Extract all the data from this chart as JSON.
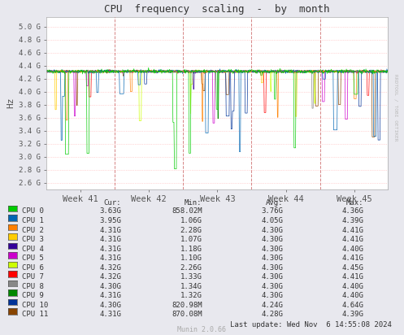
{
  "title": "CPU  frequency  scaling  -  by  month",
  "ylabel": "Hz",
  "xlabel_ticks": [
    "Week 41",
    "Week 42",
    "Week 43",
    "Week 44",
    "Week 45"
  ],
  "ytick_labels": [
    "2.6 G",
    "2.8 G",
    "3.0 G",
    "3.2 G",
    "3.4 G",
    "3.6 G",
    "3.8 G",
    "4.0 G",
    "4.2 G",
    "4.4 G",
    "4.6 G",
    "4.8 G",
    "5.0 G"
  ],
  "ytick_values": [
    2.6,
    2.8,
    3.0,
    3.2,
    3.4,
    3.6,
    3.8,
    4.0,
    4.2,
    4.4,
    4.6,
    4.8,
    5.0
  ],
  "ylim": [
    2.5,
    5.15
  ],
  "bg_color": "#e8e8ee",
  "plot_bg_color": "#ffffff",
  "grid_color": "#ffaaaa",
  "title_color": "#333333",
  "watermark": "RRDTOOL / TOBI OETIKER",
  "munin_version": "Munin 2.0.66",
  "last_update": "Last update: Wed Nov  6 14:55:08 2024",
  "cpus": [
    {
      "name": "CPU 0",
      "color": "#00cc00",
      "cur": "3.63G",
      "min": "858.02M",
      "avg": "3.76G",
      "max": "4.36G"
    },
    {
      "name": "CPU 1",
      "color": "#0066b3",
      "cur": "3.95G",
      "min": "1.06G",
      "avg": "4.05G",
      "max": "4.39G"
    },
    {
      "name": "CPU 2",
      "color": "#ff8000",
      "cur": "4.31G",
      "min": "2.28G",
      "avg": "4.30G",
      "max": "4.41G"
    },
    {
      "name": "CPU 3",
      "color": "#ffcc00",
      "cur": "4.31G",
      "min": "1.07G",
      "avg": "4.30G",
      "max": "4.41G"
    },
    {
      "name": "CPU 4",
      "color": "#330099",
      "cur": "4.31G",
      "min": "1.18G",
      "avg": "4.30G",
      "max": "4.40G"
    },
    {
      "name": "CPU 5",
      "color": "#cc00cc",
      "cur": "4.31G",
      "min": "1.10G",
      "avg": "4.30G",
      "max": "4.41G"
    },
    {
      "name": "CPU 6",
      "color": "#ccff00",
      "cur": "4.32G",
      "min": "2.26G",
      "avg": "4.30G",
      "max": "4.45G"
    },
    {
      "name": "CPU 7",
      "color": "#ff0000",
      "cur": "4.32G",
      "min": "1.33G",
      "avg": "4.30G",
      "max": "4.41G"
    },
    {
      "name": "CPU 8",
      "color": "#888888",
      "cur": "4.30G",
      "min": "1.34G",
      "avg": "4.30G",
      "max": "4.40G"
    },
    {
      "name": "CPU 9",
      "color": "#008800",
      "cur": "4.31G",
      "min": "1.32G",
      "avg": "4.30G",
      "max": "4.40G"
    },
    {
      "name": "CPU 10",
      "color": "#003399",
      "cur": "4.30G",
      "min": "820.98M",
      "avg": "4.24G",
      "max": "4.64G"
    },
    {
      "name": "CPU 11",
      "color": "#884400",
      "cur": "4.31G",
      "min": "870.08M",
      "avg": "4.28G",
      "max": "4.39G"
    }
  ],
  "n_points": 700,
  "seed": 42
}
